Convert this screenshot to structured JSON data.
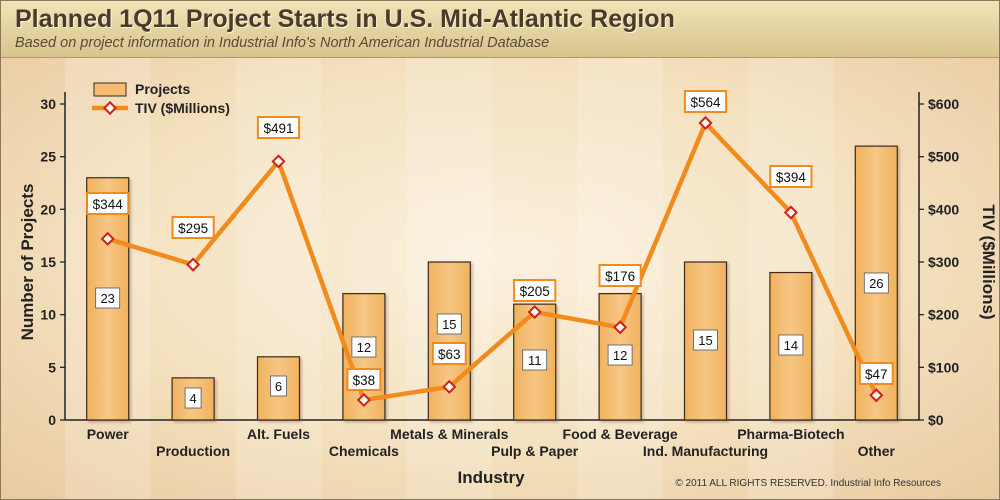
{
  "header": {
    "title": "Planned 1Q11 Project Starts in U.S. Mid-Atlantic Region",
    "subtitle": "Based on project information in Industrial Info's North American Industrial Database"
  },
  "footer": {
    "copyright": "© 2011 ALL RIGHTS RESERVED. Industrial Info Resources"
  },
  "colors": {
    "bar_fill": "#f5bd72",
    "bar_stroke": "#3a2a1a",
    "line": "#f28a1c",
    "marker": "#d0201c"
  },
  "chart_data": {
    "type": "bar",
    "title": "Planned 1Q11 Project Starts in U.S. Mid-Atlantic Region",
    "xlabel": "Industry",
    "ylabel": "Number of Projects",
    "y2label": "TIV ($Millions)",
    "categories": [
      "Power",
      "Production",
      "Alt. Fuels",
      "Chemicals",
      "Metals & Minerals",
      "Pulp & Paper",
      "Food & Beverage",
      "Ind. Manufacturing",
      "Pharma-Biotech",
      "Other"
    ],
    "series": [
      {
        "name": "Projects",
        "type": "bar",
        "axis": "left",
        "values": [
          23,
          4,
          6,
          12,
          15,
          11,
          12,
          15,
          14,
          26
        ]
      },
      {
        "name": "TIV ($Millions)",
        "type": "line",
        "axis": "right",
        "values": [
          344,
          295,
          491,
          38,
          63,
          205,
          176,
          564,
          394,
          47
        ],
        "labels": [
          "$344",
          "$295",
          "$491",
          "$38",
          "$63",
          "$205",
          "$176",
          "$564",
          "$394",
          "$47"
        ]
      }
    ],
    "ylim": [
      0,
      30
    ],
    "yticks": [
      "0",
      "5",
      "10",
      "15",
      "20",
      "25",
      "30"
    ],
    "y2lim": [
      0,
      600
    ],
    "y2ticks": [
      "$0",
      "$100",
      "$200",
      "$300",
      "$400",
      "$500",
      "$600"
    ],
    "legend": [
      "Projects",
      "TIV ($Millions)"
    ],
    "legend_position": "top-left"
  }
}
